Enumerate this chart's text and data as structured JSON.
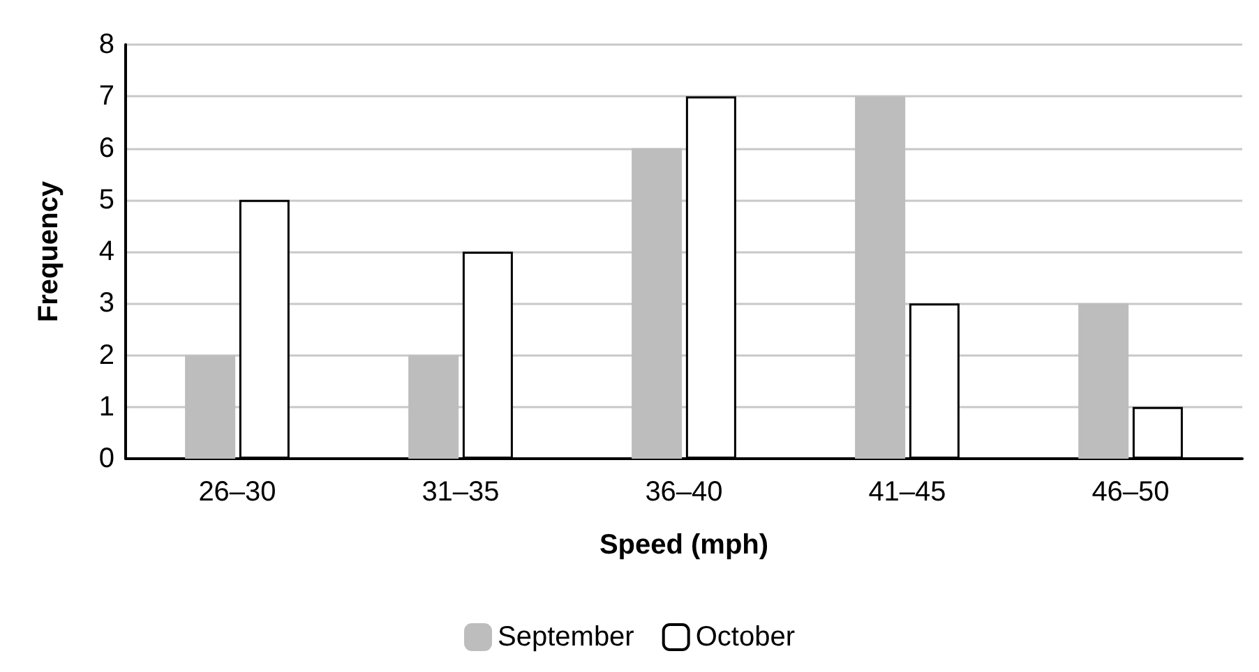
{
  "chart_data": {
    "type": "bar",
    "xlabel": "Speed (mph)",
    "ylabel": "Frequency",
    "categories": [
      "26–30",
      "31–35",
      "36–40",
      "41–45",
      "46–50"
    ],
    "series": [
      {
        "name": "September",
        "color": "#bdbdbd",
        "values": [
          2,
          2,
          6,
          7,
          3
        ]
      },
      {
        "name": "October",
        "color": "#ffffff",
        "values": [
          5,
          4,
          7,
          3,
          1
        ]
      }
    ],
    "ylim": [
      0,
      8
    ],
    "yticks": [
      0,
      1,
      2,
      3,
      4,
      5,
      6,
      7,
      8
    ],
    "grid": "y",
    "legend": "bottom"
  }
}
